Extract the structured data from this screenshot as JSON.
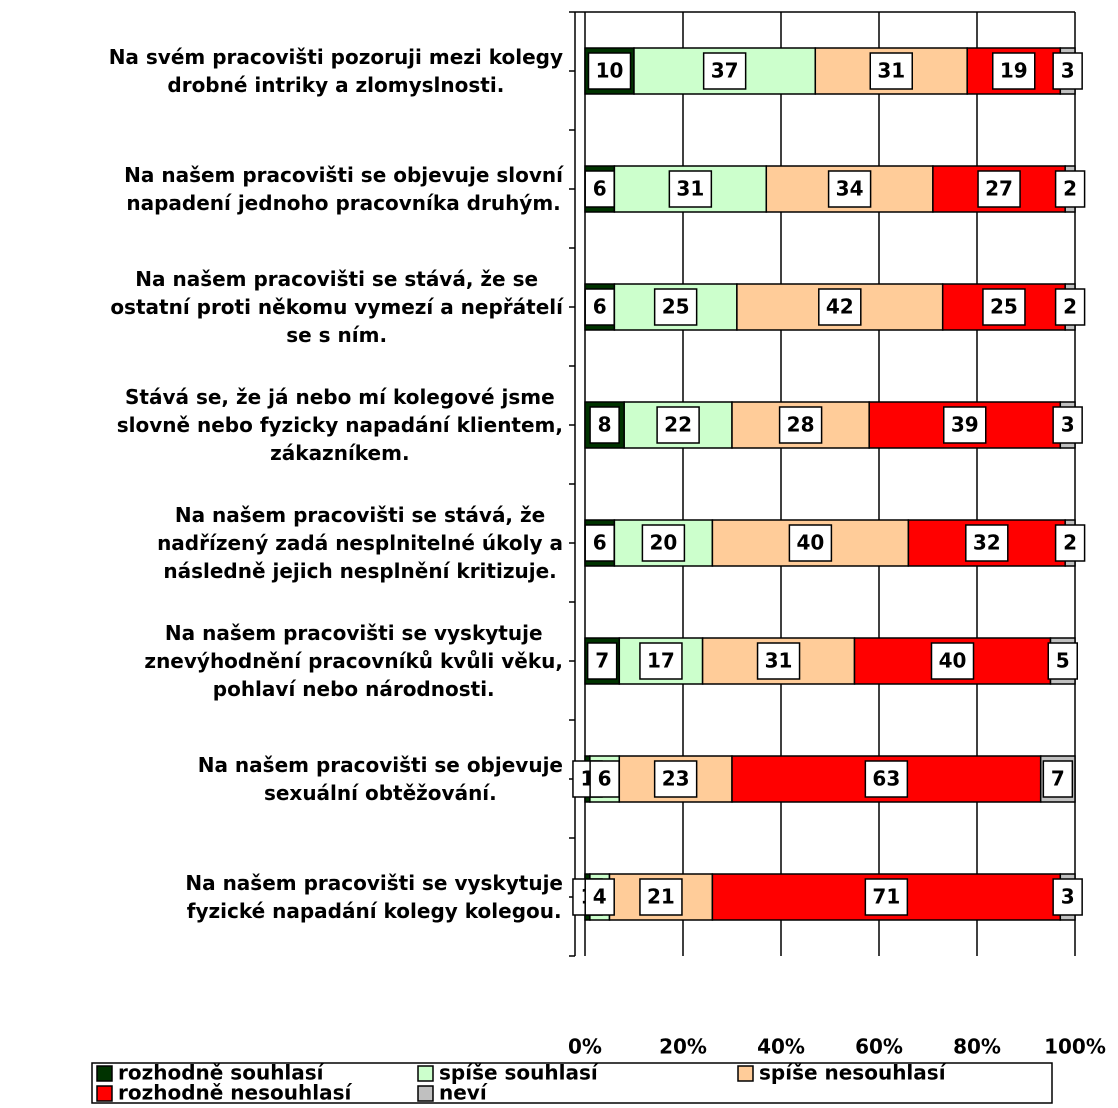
{
  "chart_data": {
    "type": "stacked-bar-horizontal",
    "categories": [
      "Na svém pracovišti pozoruji mezi kolegy\ndrobné intriky a zlomyslnosti.",
      "Na našem pracovišti se objevuje slovní\nnapadení jednoho pracovníka druhým.",
      "Na našem pracovišti se stává, že se\nostatní proti někomu vymezí a nepřátelí\nse s ním.",
      "Stává se, že já nebo mí kolegové jsme\nslovně nebo fyzicky napadání klientem,\nzákazníkem.",
      "Na našem pracovišti se stává, že\nnadřízený zadá nesplnitelné úkoly a\nnásledně jejich nesplnění kritizuje.",
      "Na našem pracovišti se vyskytuje\nznevýhodnění pracovníků kvůli věku,\npohlaví nebo národnosti.",
      "Na našem pracovišti se objevuje\nsexuální obtěžování.",
      "Na našem pracovišti se vyskytuje\nfyzické napadání kolegy kolegou."
    ],
    "series": [
      {
        "name": "rozhodně souhlasí",
        "color": "#003300",
        "values": [
          10,
          6,
          6,
          8,
          6,
          7,
          1,
          1
        ]
      },
      {
        "name": "spíše souhlasí",
        "color": "#ccffcc",
        "values": [
          37,
          31,
          25,
          22,
          20,
          17,
          6,
          4
        ]
      },
      {
        "name": "spíše nesouhlasí",
        "color": "#ffcc99",
        "values": [
          31,
          34,
          42,
          28,
          40,
          31,
          23,
          21
        ]
      },
      {
        "name": "rozhodně nesouhlasí",
        "color": "#ff0000",
        "values": [
          19,
          27,
          25,
          39,
          32,
          40,
          63,
          71
        ]
      },
      {
        "name": "neví",
        "color": "#c0c0c0",
        "values": [
          3,
          2,
          2,
          3,
          2,
          5,
          7,
          3
        ]
      }
    ],
    "xlim": [
      0,
      100
    ],
    "xticks": [
      {
        "value": 0,
        "label": "0%"
      },
      {
        "value": 20,
        "label": "20%"
      },
      {
        "value": 40,
        "label": "40%"
      },
      {
        "value": 60,
        "label": "60%"
      },
      {
        "value": 80,
        "label": "80%"
      },
      {
        "value": 100,
        "label": "100%"
      }
    ],
    "grid": true
  }
}
